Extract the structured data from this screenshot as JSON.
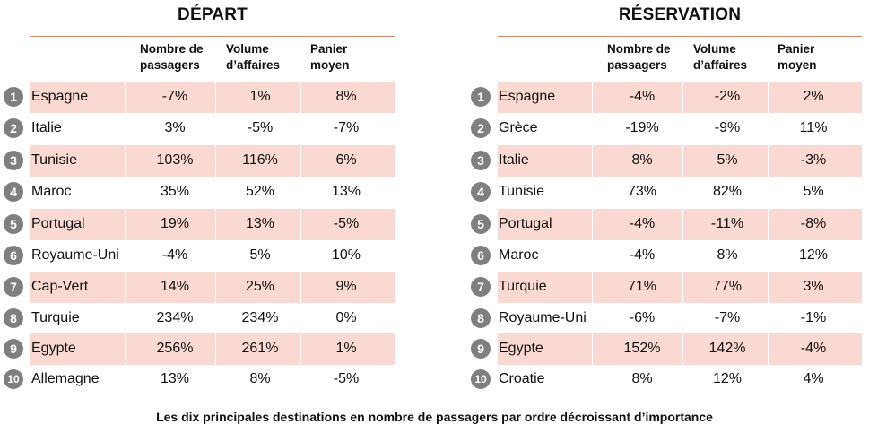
{
  "caption": "Les dix principales destinations en nombre de passagers par ordre décroissant d’importance",
  "columns": {
    "col1": [
      "Nombre de",
      "passagers"
    ],
    "col2": [
      "Volume",
      "d’affaires"
    ],
    "col3": [
      "Panier",
      "moyen"
    ]
  },
  "depart": {
    "title": "DÉPART",
    "rows": [
      {
        "rank": "1",
        "country": "Espagne",
        "passagers": "-7%",
        "affaires": "1%",
        "panier": "8%"
      },
      {
        "rank": "2",
        "country": "Italie",
        "passagers": "3%",
        "affaires": "-5%",
        "panier": "-7%"
      },
      {
        "rank": "3",
        "country": "Tunisie",
        "passagers": "103%",
        "affaires": "116%",
        "panier": "6%"
      },
      {
        "rank": "4",
        "country": "Maroc",
        "passagers": "35%",
        "affaires": "52%",
        "panier": "13%"
      },
      {
        "rank": "5",
        "country": "Portugal",
        "passagers": "19%",
        "affaires": "13%",
        "panier": "-5%"
      },
      {
        "rank": "6",
        "country": "Royaume-Uni",
        "passagers": "-4%",
        "affaires": "5%",
        "panier": "10%"
      },
      {
        "rank": "7",
        "country": "Cap-Vert",
        "passagers": "14%",
        "affaires": "25%",
        "panier": "9%"
      },
      {
        "rank": "8",
        "country": "Turquie",
        "passagers": "234%",
        "affaires": "234%",
        "panier": "0%"
      },
      {
        "rank": "9",
        "country": "Egypte",
        "passagers": "256%",
        "affaires": "261%",
        "panier": "1%"
      },
      {
        "rank": "10",
        "country": "Allemagne",
        "passagers": "13%",
        "affaires": "8%",
        "panier": "-5%"
      }
    ]
  },
  "reservation": {
    "title": "RÉSERVATION",
    "rows": [
      {
        "rank": "1",
        "country": "Espagne",
        "passagers": "-4%",
        "affaires": "-2%",
        "panier": "2%"
      },
      {
        "rank": "2",
        "country": "Grèce",
        "passagers": "-19%",
        "affaires": "-9%",
        "panier": "11%"
      },
      {
        "rank": "3",
        "country": "Italie",
        "passagers": "8%",
        "affaires": "5%",
        "panier": "-3%"
      },
      {
        "rank": "4",
        "country": "Tunisie",
        "passagers": "73%",
        "affaires": "82%",
        "panier": "5%"
      },
      {
        "rank": "5",
        "country": "Portugal",
        "passagers": "-4%",
        "affaires": "-11%",
        "panier": "-8%"
      },
      {
        "rank": "6",
        "country": "Maroc",
        "passagers": "-4%",
        "affaires": "8%",
        "panier": "12%"
      },
      {
        "rank": "7",
        "country": "Turquie",
        "passagers": "71%",
        "affaires": "77%",
        "panier": "3%"
      },
      {
        "rank": "8",
        "country": "Royaume-Uni",
        "passagers": "-6%",
        "affaires": "-7%",
        "panier": "-1%"
      },
      {
        "rank": "9",
        "country": "Egypte",
        "passagers": "152%",
        "affaires": "142%",
        "panier": "-4%"
      },
      {
        "rank": "10",
        "country": "Croatie",
        "passagers": "8%",
        "affaires": "12%",
        "panier": "4%"
      }
    ]
  }
}
